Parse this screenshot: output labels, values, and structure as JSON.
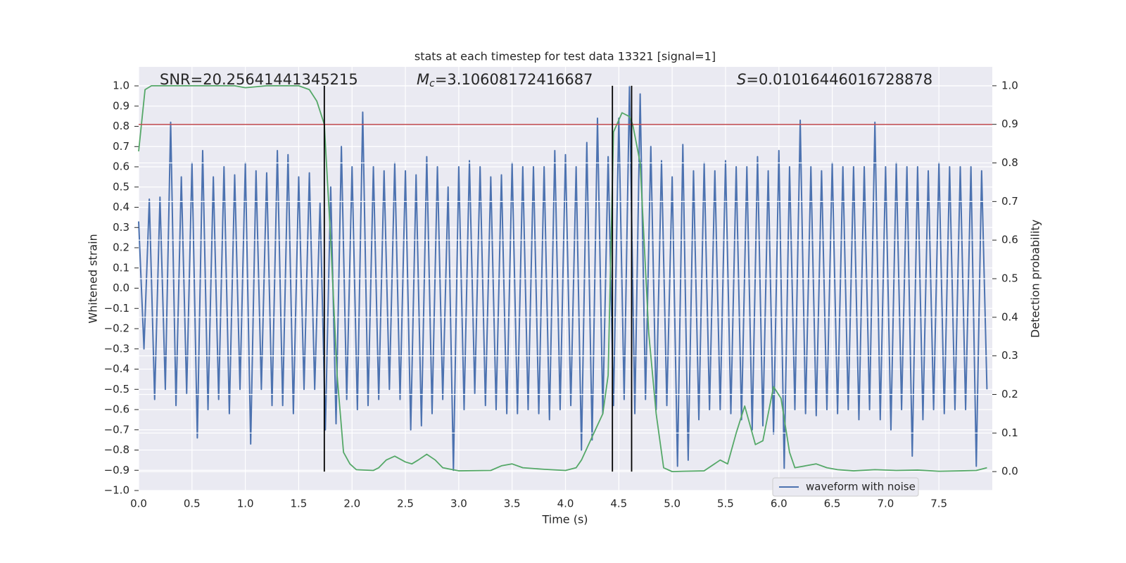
{
  "chart_data": {
    "type": "line",
    "title": "stats at each timestep for test data 13321 [signal=1]",
    "xlabel": "Time (s)",
    "ylabel": "Whitened strain",
    "y2label": "Detection probability",
    "xlim": [
      0,
      8
    ],
    "ylim": [
      -1.0,
      1.094
    ],
    "y2lim": [
      -0.049,
      1.049
    ],
    "xticks": [
      {
        "value": 0,
        "label": "0.0"
      },
      0.5,
      {
        "value": 1,
        "label": "1.0"
      },
      1.5,
      {
        "value": 2,
        "label": "2.0"
      },
      2.5,
      {
        "value": 3,
        "label": "3.0"
      },
      3.5,
      {
        "value": 4,
        "label": "4.0"
      },
      4.5,
      {
        "value": 5,
        "label": "5.0"
      },
      5.5,
      {
        "value": 6,
        "label": "6.0"
      },
      6.5,
      {
        "value": 7,
        "label": "7.0"
      },
      7.5
    ],
    "yticks": [
      {
        "value": -1.0,
        "label": "−1.0"
      },
      {
        "value": -0.9,
        "label": "−0.9"
      },
      {
        "value": -0.8,
        "label": "−0.8"
      },
      {
        "value": -0.7,
        "label": "−0.7"
      },
      {
        "value": -0.6,
        "label": "−0.6"
      },
      {
        "value": -0.5,
        "label": "−0.5"
      },
      {
        "value": -0.4,
        "label": "−0.4"
      },
      {
        "value": -0.3,
        "label": "−0.3"
      },
      {
        "value": -0.2,
        "label": "−0.2"
      },
      {
        "value": -0.1,
        "label": "−0.1"
      },
      {
        "value": 0,
        "label": "0.0"
      },
      0.1,
      0.2,
      0.3,
      0.4,
      0.5,
      0.6,
      0.7,
      0.8,
      0.9,
      {
        "value": 1,
        "label": "1.0"
      }
    ],
    "y2ticks": [
      {
        "value": 0,
        "label": "0.0"
      },
      0.1,
      0.2,
      0.3,
      0.4,
      0.5,
      0.6,
      0.7,
      0.8,
      0.9,
      {
        "value": 1,
        "label": "1.0"
      }
    ],
    "grid": true,
    "background": "#eaeaf2",
    "legend": "lower right",
    "annotations": [
      {
        "text": "SNR=20.25641441345215"
      },
      {
        "symbol": "M",
        "subscript": "c",
        "text": "=3.10608172416687"
      },
      {
        "symbol": "S",
        "text": "=0.01016446016728878"
      }
    ],
    "hlines": [
      {
        "value": 0.9,
        "axis": "y2",
        "color": "#c44e52"
      }
    ],
    "vlines": {
      "x": [
        1.74,
        4.44,
        4.62
      ],
      "ymin": 0,
      "ymax": 1,
      "axis": "y2",
      "color": "#000000"
    },
    "series": [
      {
        "name": "waveform with noise",
        "color": "#4c72b0",
        "x": [
          0,
          0.05,
          0.1,
          0.15,
          0.2,
          0.25,
          0.3,
          0.35,
          0.4,
          0.45,
          0.5,
          0.55,
          0.6,
          0.65,
          0.7,
          0.75,
          0.8,
          0.85,
          0.9,
          0.95,
          1,
          1.05,
          1.1,
          1.15,
          1.2,
          1.25,
          1.3,
          1.35,
          1.4,
          1.45,
          1.5,
          1.55,
          1.6,
          1.65,
          1.7,
          1.75,
          1.8,
          1.85,
          1.9,
          1.95,
          2,
          2.05,
          2.1,
          2.15,
          2.2,
          2.25,
          2.3,
          2.35,
          2.4,
          2.45,
          2.5,
          2.55,
          2.6,
          2.65,
          2.7,
          2.75,
          2.8,
          2.85,
          2.9,
          2.95,
          3,
          3.05,
          3.1,
          3.15,
          3.2,
          3.25,
          3.3,
          3.35,
          3.4,
          3.45,
          3.5,
          3.55,
          3.6,
          3.65,
          3.7,
          3.75,
          3.8,
          3.85,
          3.9,
          3.95,
          4,
          4.05,
          4.1,
          4.15,
          4.2,
          4.25,
          4.3,
          4.35,
          4.4,
          4.45,
          4.5,
          4.55,
          4.6,
          4.65,
          4.7,
          4.75,
          4.8,
          4.85,
          4.9,
          4.95,
          5,
          5.05,
          5.1,
          5.15,
          5.2,
          5.25,
          5.3,
          5.35,
          5.4,
          5.45,
          5.5,
          5.55,
          5.6,
          5.65,
          5.7,
          5.75,
          5.8,
          5.85,
          5.9,
          5.95,
          6,
          6.05,
          6.1,
          6.15,
          6.2,
          6.25,
          6.3,
          6.35,
          6.4,
          6.45,
          6.5,
          6.55,
          6.6,
          6.65,
          6.7,
          6.75,
          6.8,
          6.85,
          6.9,
          6.95,
          7,
          7.05,
          7.1,
          7.15,
          7.2,
          7.25,
          7.3,
          7.35,
          7.4,
          7.45,
          7.5,
          7.55,
          7.6,
          7.65,
          7.7,
          7.75,
          7.8,
          7.85,
          7.9,
          7.95
        ],
        "values": [
          0.33,
          -0.3,
          0.44,
          -0.55,
          0.45,
          -0.5,
          0.82,
          -0.58,
          0.55,
          -0.52,
          0.62,
          -0.74,
          0.68,
          -0.6,
          0.55,
          -0.55,
          0.6,
          -0.62,
          0.56,
          -0.5,
          0.62,
          -0.77,
          0.58,
          -0.5,
          0.57,
          -0.58,
          0.68,
          -0.58,
          0.66,
          -0.62,
          0.55,
          -0.5,
          0.57,
          -0.5,
          0.42,
          -0.7,
          0.5,
          -0.67,
          0.7,
          -0.55,
          0.6,
          -0.6,
          0.87,
          -0.58,
          0.6,
          -0.55,
          0.58,
          -0.5,
          0.62,
          -0.55,
          0.58,
          -0.7,
          0.56,
          -0.68,
          0.65,
          -0.62,
          0.6,
          -0.55,
          0.5,
          -0.9,
          0.6,
          -0.6,
          0.63,
          -0.52,
          0.6,
          -0.58,
          0.55,
          -0.6,
          0.56,
          -0.62,
          0.62,
          -0.62,
          0.6,
          -0.6,
          0.6,
          -0.62,
          0.6,
          -0.65,
          0.68,
          -0.6,
          0.66,
          -0.58,
          0.6,
          -0.8,
          0.72,
          -0.75,
          0.84,
          -0.62,
          0.65,
          -0.58,
          0.84,
          -0.55,
          1.0,
          -0.62,
          0.96,
          -0.55,
          0.7,
          -0.6,
          0.63,
          -0.58,
          0.55,
          -0.88,
          0.71,
          -0.85,
          0.58,
          -0.65,
          0.62,
          -0.6,
          0.58,
          -0.6,
          0.63,
          -0.62,
          0.6,
          -0.65,
          0.6,
          -0.7,
          0.65,
          -0.68,
          0.58,
          -0.72,
          0.68,
          -0.89,
          0.6,
          -0.6,
          0.83,
          -0.62,
          0.6,
          -0.63,
          0.58,
          -0.6,
          0.62,
          -0.62,
          0.6,
          -0.6,
          0.6,
          -0.65,
          0.6,
          -0.6,
          0.82,
          -0.65,
          0.6,
          -0.7,
          0.62,
          -0.6,
          0.6,
          -0.83,
          0.6,
          -0.65,
          0.58,
          -0.6,
          0.62,
          -0.62,
          0.6,
          -0.6,
          0.6,
          -0.6,
          0.6,
          -0.88,
          0.58,
          -0.5
        ]
      },
      {
        "color": "#55a868",
        "axis": "y2",
        "x": [
          0,
          0.06,
          0.12,
          0.5,
          0.9,
          1.0,
          1.2,
          1.5,
          1.6,
          1.67,
          1.74,
          1.8,
          1.86,
          1.92,
          1.98,
          2.04,
          2.2,
          2.25,
          2.32,
          2.4,
          2.5,
          2.56,
          2.62,
          2.7,
          2.78,
          2.85,
          3.0,
          3.3,
          3.4,
          3.5,
          3.6,
          3.8,
          4.0,
          4.1,
          4.15,
          4.25,
          4.35,
          4.4,
          4.45,
          4.53,
          4.6,
          4.63,
          4.7,
          4.78,
          4.85,
          4.92,
          5.0,
          5.1,
          5.3,
          5.45,
          5.52,
          5.6,
          5.68,
          5.78,
          5.85,
          5.95,
          6.02,
          6.1,
          6.15,
          6.25,
          6.35,
          6.45,
          6.55,
          6.7,
          6.9,
          7.1,
          7.3,
          7.5,
          7.7,
          7.85,
          7.95
        ],
        "values": [
          0.83,
          0.99,
          1.0,
          1.0,
          1.0,
          0.995,
          1.0,
          1.0,
          0.99,
          0.96,
          0.9,
          0.6,
          0.25,
          0.05,
          0.02,
          0.005,
          0.003,
          0.01,
          0.03,
          0.04,
          0.025,
          0.02,
          0.03,
          0.045,
          0.03,
          0.01,
          0.002,
          0.003,
          0.015,
          0.02,
          0.01,
          0.006,
          0.003,
          0.01,
          0.03,
          0.09,
          0.15,
          0.25,
          0.88,
          0.93,
          0.92,
          0.9,
          0.8,
          0.36,
          0.15,
          0.01,
          0.0,
          0.001,
          0.002,
          0.03,
          0.02,
          0.1,
          0.17,
          0.07,
          0.08,
          0.22,
          0.19,
          0.05,
          0.01,
          0.015,
          0.02,
          0.01,
          0.005,
          0.002,
          0.005,
          0.003,
          0.004,
          0.001,
          0.002,
          0.003,
          0.01
        ]
      }
    ]
  }
}
